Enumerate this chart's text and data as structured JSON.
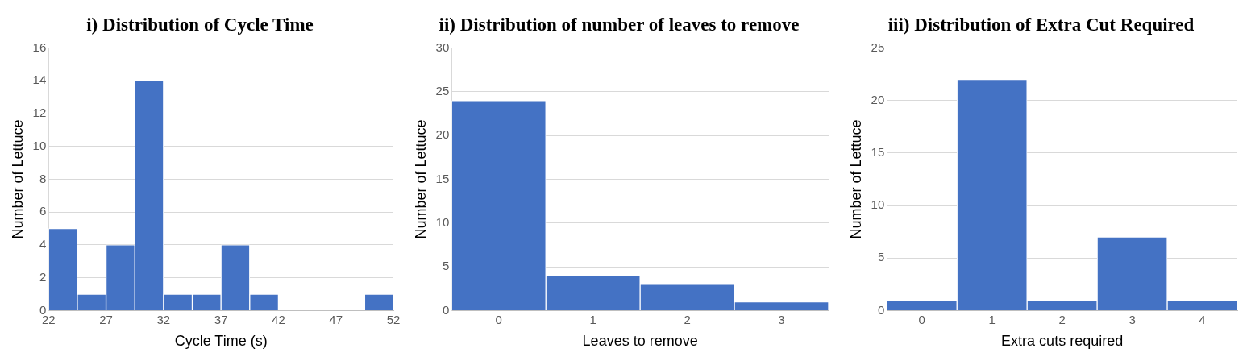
{
  "chart_data": [
    {
      "type": "histogram",
      "title": "i) Distribution of Cycle Time",
      "xlabel": "Cycle Time (s)",
      "ylabel": "Number of Lettuce",
      "bins": [
        22,
        24.5,
        27,
        29.5,
        32,
        34.5,
        37,
        39.5,
        42,
        44.5,
        47,
        49.5,
        52
      ],
      "values": [
        5,
        1,
        4,
        14,
        1,
        1,
        4,
        1,
        0,
        0,
        0,
        1
      ],
      "color": "#4472c4",
      "xlim": [
        22,
        52
      ],
      "xticks": [
        22,
        27,
        32,
        37,
        42,
        47,
        52
      ],
      "ylim": [
        0,
        16
      ],
      "yticks": [
        0,
        2,
        4,
        6,
        8,
        10,
        12,
        14,
        16
      ],
      "grid": "y"
    },
    {
      "type": "bar",
      "title": "ii) Distribution of number of leaves to remove",
      "xlabel": "Leaves to remove",
      "ylabel": "Number of Lettuce",
      "categories": [
        "0",
        "1",
        "2",
        "3"
      ],
      "values": [
        24,
        4,
        3,
        1
      ],
      "color": "#4472c4",
      "ylim": [
        0,
        30
      ],
      "yticks": [
        0,
        5,
        10,
        15,
        20,
        25,
        30
      ],
      "grid": "y"
    },
    {
      "type": "bar",
      "title": "iii) Distribution of Extra Cut Required",
      "xlabel": "Extra cuts required",
      "ylabel": "Number of Lettuce",
      "categories": [
        "0",
        "1",
        "2",
        "3",
        "4"
      ],
      "values": [
        1,
        22,
        1,
        7,
        1
      ],
      "color": "#4472c4",
      "ylim": [
        0,
        25
      ],
      "yticks": [
        0,
        5,
        10,
        15,
        20,
        25
      ],
      "grid": "y"
    }
  ]
}
